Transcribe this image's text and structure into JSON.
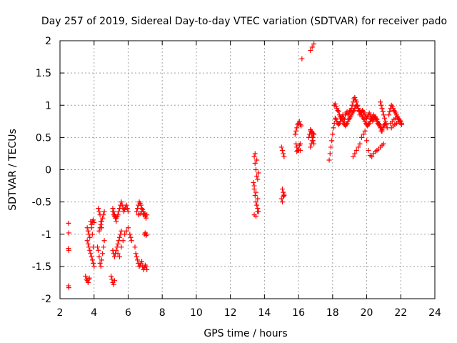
{
  "chart_data": {
    "type": "scatter",
    "title": "Day 257 of 2019, Sidereal Day-to-day VTEC variation (SDTVAR) for receiver pado",
    "xlabel": "GPS time / hours",
    "ylabel": "SDTVAR / TECUs",
    "xlim": [
      2,
      24
    ],
    "ylim": [
      -2,
      2
    ],
    "x_ticks": [
      2,
      4,
      6,
      8,
      10,
      12,
      14,
      16,
      18,
      20,
      22,
      24
    ],
    "y_ticks": [
      -2,
      -1.5,
      -1,
      -0.5,
      0,
      0.5,
      1,
      1.5,
      2
    ],
    "x_tick_labels": [
      "2",
      "4",
      "6",
      "8",
      "10",
      "12",
      "14",
      "16",
      "18",
      "20",
      "22",
      "24"
    ],
    "y_tick_labels": [
      "-2",
      "-1.5",
      "-1",
      "-0.5",
      "0",
      "0.5",
      "1",
      "1.5",
      "2"
    ],
    "grid": true,
    "marker": "+",
    "color": "#ff0000",
    "series": [
      {
        "name": "SDTVAR",
        "x": [
          2.5,
          2.52,
          2.5,
          2.52,
          2.5,
          2.52,
          3.5,
          3.55,
          3.6,
          3.65,
          3.7,
          3.72,
          3.6,
          3.65,
          3.7,
          3.75,
          3.8,
          3.85,
          3.9,
          3.95,
          4.0,
          3.95,
          3.9,
          3.85,
          3.8,
          3.85,
          3.9,
          3.95,
          4.0,
          3.6,
          3.65,
          3.7,
          3.75,
          4.2,
          4.25,
          4.3,
          4.35,
          4.4,
          4.45,
          4.5,
          4.55,
          4.6,
          4.3,
          4.35,
          4.4,
          4.45,
          4.5,
          4.55,
          4.6,
          4.25,
          4.3,
          4.35,
          4.4,
          4.45,
          5.0,
          5.05,
          5.1,
          5.15,
          5.2,
          5.25,
          5.3,
          5.35,
          5.4,
          5.45,
          5.5,
          5.55,
          5.6,
          5.1,
          5.15,
          5.2,
          5.25,
          5.3,
          5.35,
          5.4,
          5.45,
          5.5,
          5.55,
          5.6,
          5.65,
          5.7,
          5.75,
          5.8,
          5.85,
          5.9,
          5.95,
          6.0,
          5.1,
          5.15,
          5.2,
          5.25,
          5.3,
          5.4,
          5.5,
          5.6,
          5.7,
          5.8,
          5.9,
          6.0,
          6.1,
          6.15,
          6.2,
          5.1,
          5.15,
          5.2,
          6.4,
          6.45,
          6.5,
          6.55,
          6.6,
          6.65,
          6.7,
          6.75,
          6.8,
          6.85,
          6.9,
          6.95,
          7.0,
          7.05,
          7.1,
          6.5,
          6.55,
          6.6,
          6.65,
          6.7,
          6.75,
          6.8,
          6.85,
          6.9,
          6.95,
          7.0,
          6.6,
          6.7,
          6.8,
          6.9,
          7.0,
          7.05,
          7.1,
          6.95,
          7.0,
          7.05,
          7.1,
          13.35,
          13.4,
          13.45,
          13.5,
          13.55,
          13.6,
          13.65,
          13.4,
          13.45,
          13.5,
          13.55,
          13.6,
          13.65,
          13.4,
          13.5,
          13.6,
          13.45,
          13.55,
          13.4,
          13.5,
          13.6,
          15.0,
          15.05,
          15.1,
          15.15,
          15.05,
          15.1,
          15.15,
          15.0,
          15.05,
          15.1,
          15.15,
          15.8,
          15.85,
          15.9,
          15.95,
          16.0,
          16.05,
          16.1,
          16.15,
          15.85,
          15.9,
          15.95,
          16.0,
          16.05,
          16.1,
          15.9,
          16.0,
          16.1,
          16.2,
          16.6,
          16.65,
          16.7,
          16.75,
          16.8,
          16.85,
          16.9,
          16.7,
          16.75,
          16.8,
          16.85,
          16.9,
          16.7,
          16.8,
          16.9,
          16.7,
          16.75,
          16.8,
          16.85,
          16.9,
          17.8,
          17.85,
          17.9,
          17.95,
          18.0,
          18.05,
          18.1,
          18.15,
          18.2,
          18.25,
          18.3,
          18.35,
          18.4,
          18.45,
          18.5,
          18.55,
          18.6,
          18.65,
          18.7,
          18.75,
          18.8,
          18.85,
          18.9,
          18.95,
          19.0,
          19.05,
          19.1,
          19.15,
          19.2,
          19.25,
          19.3,
          19.35,
          19.4,
          19.45,
          19.5,
          19.55,
          19.6,
          19.65,
          19.7,
          19.75,
          19.8,
          19.85,
          19.9,
          19.95,
          20.0,
          20.05,
          20.1,
          20.15,
          20.2,
          20.25,
          20.3,
          20.35,
          20.4,
          20.45,
          20.5,
          20.55,
          20.6,
          20.65,
          20.7,
          20.75,
          20.8,
          20.85,
          20.9,
          18.1,
          18.15,
          18.2,
          18.25,
          18.3,
          18.35,
          18.4,
          18.45,
          18.5,
          18.55,
          18.6,
          18.65,
          18.7,
          18.75,
          18.8,
          18.85,
          18.9,
          18.95,
          19.0,
          19.05,
          19.1,
          19.15,
          19.2,
          19.25,
          19.3,
          19.35,
          19.4,
          19.45,
          19.5,
          19.55,
          19.6,
          19.65,
          19.7,
          19.75,
          19.8,
          19.85,
          19.9,
          19.95,
          20.0,
          20.05,
          20.1,
          20.15,
          20.2,
          20.25,
          20.3,
          20.35,
          20.4,
          20.45,
          20.5,
          20.55,
          20.6,
          20.65,
          20.7,
          20.75,
          20.8,
          19.2,
          19.3,
          19.4,
          19.5,
          19.6,
          19.7,
          19.8,
          19.9,
          20.0,
          20.1,
          20.2,
          20.3,
          20.4,
          20.5,
          20.6,
          20.7,
          20.8,
          20.9,
          21.0,
          20.8,
          20.85,
          20.9,
          20.95,
          21.0,
          21.05,
          21.1,
          21.15,
          21.2,
          20.85,
          20.9,
          20.95,
          21.0,
          21.05,
          21.1,
          21.3,
          21.35,
          21.4,
          21.45,
          21.5,
          21.55,
          21.6,
          21.65,
          21.7,
          21.75,
          21.8,
          21.85,
          21.9,
          21.95,
          22.0,
          22.05,
          21.4,
          21.5,
          21.6,
          21.7,
          21.8,
          21.9,
          22.0,
          21.45,
          21.55,
          21.65,
          21.75,
          21.85,
          21.95,
          22.05
        ],
        "y": [
          -0.83,
          -0.98,
          -1.22,
          -1.25,
          -1.8,
          -1.83,
          -1.65,
          -1.7,
          -1.72,
          -1.75,
          -1.7,
          -1.68,
          -1.1,
          -1.15,
          -1.2,
          -1.25,
          -1.3,
          -1.35,
          -1.4,
          -1.45,
          -1.5,
          -1.2,
          -1.0,
          -0.9,
          -0.8,
          -0.85,
          -0.8,
          -0.78,
          -0.82,
          -0.9,
          -0.95,
          -1.0,
          -1.05,
          -1.2,
          -1.25,
          -1.35,
          -1.45,
          -1.5,
          -1.4,
          -1.3,
          -1.2,
          -1.1,
          -0.95,
          -0.9,
          -0.85,
          -0.8,
          -0.75,
          -0.7,
          -0.65,
          -0.6,
          -0.65,
          -0.7,
          -0.8,
          -0.9,
          -1.65,
          -1.7,
          -1.75,
          -1.78,
          -1.72,
          -1.3,
          -1.25,
          -1.2,
          -1.15,
          -1.1,
          -1.05,
          -1.0,
          -0.95,
          -0.6,
          -0.65,
          -0.7,
          -0.72,
          -0.75,
          -0.73,
          -0.7,
          -0.65,
          -0.6,
          -0.55,
          -0.5,
          -0.55,
          -0.6,
          -0.65,
          -0.62,
          -0.58,
          -0.55,
          -0.6,
          -0.65,
          -0.65,
          -0.7,
          -0.72,
          -0.75,
          -0.8,
          -1.3,
          -1.35,
          -1.2,
          -1.1,
          -1.0,
          -0.95,
          -0.9,
          -1.0,
          -1.05,
          -1.1,
          -1.25,
          -1.3,
          -1.35,
          -1.2,
          -1.3,
          -1.35,
          -1.4,
          -1.45,
          -1.5,
          -1.48,
          -1.45,
          -1.42,
          -1.5,
          -1.55,
          -1.52,
          -1.48,
          -1.5,
          -1.55,
          -0.65,
          -0.6,
          -0.55,
          -0.5,
          -0.52,
          -0.55,
          -0.6,
          -0.62,
          -0.65,
          -0.68,
          -0.7,
          -0.7,
          -0.68,
          -0.65,
          -0.7,
          -0.72,
          -0.75,
          -0.7,
          -1.0,
          -0.98,
          -1.02,
          -1.0,
          -0.2,
          -0.3,
          -0.4,
          -0.5,
          -0.55,
          -0.6,
          -0.65,
          0.2,
          0.1,
          0.0,
          -0.1,
          -0.15,
          -0.05,
          -0.7,
          -0.72,
          -0.65,
          0.25,
          0.15,
          -0.25,
          -0.35,
          -0.45,
          0.35,
          0.3,
          0.25,
          0.2,
          -0.3,
          -0.35,
          -0.4,
          -0.45,
          -0.5,
          -0.42,
          -0.38,
          0.55,
          0.6,
          0.65,
          0.7,
          0.72,
          0.75,
          0.7,
          0.68,
          0.4,
          0.35,
          0.3,
          0.32,
          0.38,
          0.4,
          0.28,
          0.3,
          0.3,
          1.72,
          0.5,
          0.55,
          0.6,
          0.55,
          0.5,
          0.45,
          0.4,
          0.35,
          0.4,
          0.45,
          0.5,
          0.55,
          1.85,
          1.9,
          1.95,
          0.62,
          0.6,
          0.58,
          0.56,
          0.55,
          0.15,
          0.25,
          0.35,
          0.45,
          0.55,
          0.65,
          0.72,
          0.8,
          0.78,
          0.75,
          0.72,
          0.7,
          0.72,
          0.75,
          0.8,
          0.82,
          0.85,
          0.8,
          0.78,
          0.85,
          0.88,
          0.9,
          0.85,
          0.88,
          0.9,
          0.92,
          0.95,
          1.0,
          1.05,
          1.1,
          1.12,
          1.08,
          1.05,
          1.0,
          0.95,
          0.9,
          0.85,
          0.88,
          0.9,
          0.92,
          0.9,
          0.88,
          0.85,
          0.82,
          0.8,
          0.82,
          0.85,
          0.88,
          0.85,
          0.8,
          0.78,
          0.75,
          0.78,
          0.8,
          0.82,
          0.8,
          0.78,
          0.75,
          0.72,
          0.7,
          0.68,
          0.65,
          0.6,
          1.0,
          1.02,
          0.98,
          0.95,
          0.92,
          0.9,
          0.85,
          0.82,
          0.8,
          0.78,
          0.75,
          0.72,
          0.7,
          0.68,
          0.7,
          0.72,
          0.75,
          0.78,
          0.8,
          0.82,
          0.85,
          0.88,
          0.9,
          0.92,
          0.95,
          0.98,
          1.0,
          0.98,
          0.95,
          0.92,
          0.9,
          0.88,
          0.85,
          0.82,
          0.8,
          0.78,
          0.75,
          0.72,
          0.7,
          0.68,
          0.7,
          0.72,
          0.75,
          0.78,
          0.8,
          0.82,
          0.85,
          0.82,
          0.8,
          0.78,
          0.75,
          0.72,
          0.7,
          0.68,
          0.65,
          0.2,
          0.25,
          0.3,
          0.35,
          0.4,
          0.5,
          0.55,
          0.6,
          0.45,
          0.3,
          0.22,
          0.2,
          0.25,
          0.28,
          0.3,
          0.32,
          0.35,
          0.38,
          0.4,
          1.05,
          1.0,
          0.95,
          0.9,
          0.85,
          0.8,
          0.75,
          0.7,
          0.65,
          0.6,
          0.62,
          0.65,
          0.68,
          0.7,
          0.72,
          0.85,
          0.9,
          0.95,
          1.0,
          0.98,
          0.95,
          0.92,
          0.9,
          0.88,
          0.85,
          0.82,
          0.8,
          0.78,
          0.75,
          0.72,
          0.7,
          0.72,
          0.75,
          0.78,
          0.8,
          0.82,
          0.78,
          0.75,
          0.65,
          0.68,
          0.7,
          0.72,
          0.74,
          0.76,
          0.72
        ]
      }
    ]
  }
}
